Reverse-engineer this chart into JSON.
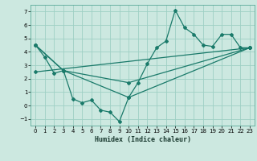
{
  "title": "",
  "xlabel": "Humidex (Indice chaleur)",
  "ylabel": "",
  "background_color": "#cce8e0",
  "grid_color": "#9ecfc4",
  "line_color": "#1a7a6a",
  "xlim": [
    -0.5,
    23.5
  ],
  "ylim": [
    -1.5,
    7.5
  ],
  "xticks": [
    0,
    1,
    2,
    3,
    4,
    5,
    6,
    7,
    8,
    9,
    10,
    11,
    12,
    13,
    14,
    15,
    16,
    17,
    18,
    19,
    20,
    21,
    22,
    23
  ],
  "yticks": [
    -1,
    0,
    1,
    2,
    3,
    4,
    5,
    6,
    7
  ],
  "line1_x": [
    0,
    1,
    2,
    3,
    4,
    5,
    6,
    7,
    8,
    9,
    10,
    11,
    12,
    13,
    14,
    15,
    16,
    17,
    18,
    19,
    20,
    21,
    22,
    23
  ],
  "line1_y": [
    4.5,
    3.6,
    2.4,
    2.6,
    0.5,
    0.2,
    0.4,
    -0.35,
    -0.5,
    -1.2,
    0.6,
    1.7,
    3.1,
    4.3,
    4.8,
    7.1,
    5.8,
    5.3,
    4.5,
    4.4,
    5.3,
    5.3,
    4.3,
    4.3
  ],
  "line2_x": [
    0,
    3,
    10,
    23
  ],
  "line2_y": [
    4.5,
    2.6,
    0.6,
    4.3
  ],
  "line3_x": [
    0,
    3,
    10,
    23
  ],
  "line3_y": [
    4.5,
    2.6,
    1.7,
    4.3
  ],
  "line4_x": [
    0,
    23
  ],
  "line4_y": [
    2.5,
    4.3
  ]
}
